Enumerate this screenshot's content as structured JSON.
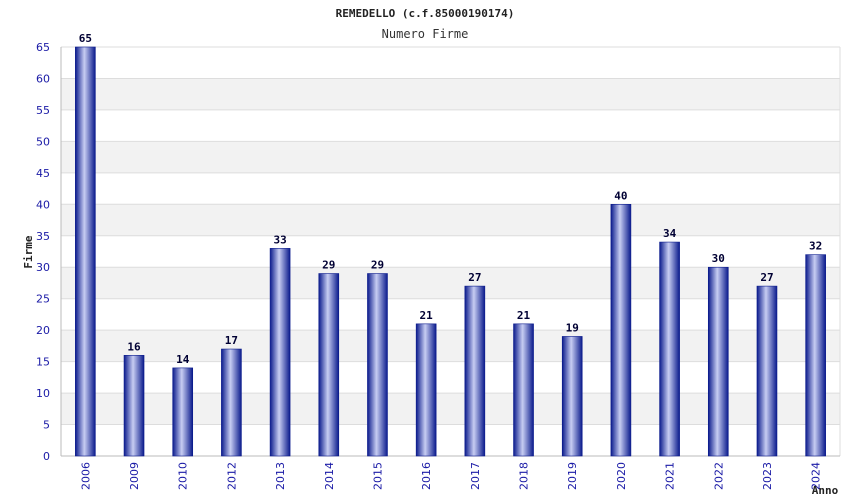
{
  "chart_data": {
    "type": "bar",
    "title": "REMEDELLO (c.f.85000190174)",
    "subtitle": "Numero Firme",
    "xlabel": "Anno",
    "ylabel": "Firme",
    "categories": [
      "2006",
      "2009",
      "2010",
      "2012",
      "2013",
      "2014",
      "2015",
      "2016",
      "2017",
      "2018",
      "2019",
      "2020",
      "2021",
      "2022",
      "2023",
      "2024"
    ],
    "values": [
      65,
      16,
      14,
      17,
      33,
      29,
      29,
      21,
      27,
      21,
      19,
      40,
      34,
      30,
      27,
      32
    ],
    "ylim": [
      0,
      65
    ],
    "yticks": [
      0,
      5,
      10,
      15,
      20,
      25,
      30,
      35,
      40,
      45,
      50,
      55,
      60,
      65
    ],
    "grid": true,
    "colors": {
      "bar_dark": "#0a1a8c",
      "bar_light": "#c7cdf2",
      "band": "#f2f2f2",
      "grid": "#dddddd",
      "tick_text": "#1a1aa6"
    }
  }
}
